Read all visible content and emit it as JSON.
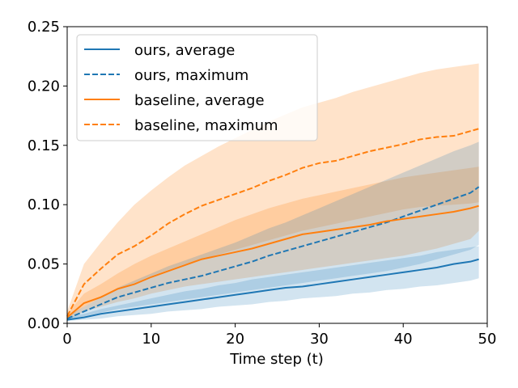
{
  "chart_data": {
    "type": "line",
    "title": "",
    "xlabel": "Time step (t)",
    "ylabel": "",
    "xlim": [
      0,
      50
    ],
    "ylim": [
      0,
      0.25
    ],
    "xticks": [
      "0",
      "10",
      "20",
      "30",
      "40",
      "50"
    ],
    "yticks": [
      "0.00",
      "0.05",
      "0.10",
      "0.15",
      "0.20",
      "0.25"
    ],
    "grid": false,
    "legend_position": "top-left",
    "x": [
      0,
      2,
      4,
      6,
      8,
      10,
      12,
      14,
      16,
      18,
      20,
      22,
      24,
      26,
      28,
      30,
      32,
      34,
      36,
      38,
      40,
      42,
      44,
      46,
      48,
      49
    ],
    "series": [
      {
        "name": "ours, average",
        "style": "solid",
        "color": "#1f77b4",
        "values": [
          0.003,
          0.005,
          0.008,
          0.01,
          0.012,
          0.014,
          0.016,
          0.018,
          0.02,
          0.022,
          0.024,
          0.026,
          0.028,
          0.03,
          0.031,
          0.033,
          0.035,
          0.037,
          0.039,
          0.041,
          0.043,
          0.045,
          0.047,
          0.05,
          0.052,
          0.054
        ],
        "band_lower": [
          0.002,
          0.003,
          0.004,
          0.006,
          0.007,
          0.008,
          0.01,
          0.011,
          0.012,
          0.014,
          0.015,
          0.016,
          0.018,
          0.019,
          0.021,
          0.022,
          0.023,
          0.025,
          0.026,
          0.028,
          0.029,
          0.031,
          0.032,
          0.034,
          0.036,
          0.038
        ],
        "band_upper": [
          0.005,
          0.008,
          0.012,
          0.015,
          0.018,
          0.021,
          0.024,
          0.027,
          0.029,
          0.032,
          0.034,
          0.037,
          0.039,
          0.041,
          0.043,
          0.045,
          0.047,
          0.049,
          0.051,
          0.053,
          0.055,
          0.057,
          0.06,
          0.062,
          0.064,
          0.065
        ]
      },
      {
        "name": "ours, maximum",
        "style": "dashed",
        "color": "#1f77b4",
        "values": [
          0.004,
          0.01,
          0.016,
          0.022,
          0.026,
          0.03,
          0.034,
          0.037,
          0.04,
          0.044,
          0.048,
          0.052,
          0.057,
          0.061,
          0.065,
          0.069,
          0.073,
          0.077,
          0.081,
          0.085,
          0.09,
          0.095,
          0.1,
          0.105,
          0.11,
          0.115
        ],
        "band_lower": [
          0.003,
          0.006,
          0.009,
          0.012,
          0.014,
          0.016,
          0.018,
          0.02,
          0.022,
          0.024,
          0.026,
          0.028,
          0.03,
          0.032,
          0.034,
          0.036,
          0.038,
          0.04,
          0.042,
          0.044,
          0.047,
          0.05,
          0.054,
          0.058,
          0.062,
          0.066
        ],
        "band_upper": [
          0.006,
          0.014,
          0.022,
          0.03,
          0.036,
          0.042,
          0.048,
          0.053,
          0.058,
          0.063,
          0.068,
          0.074,
          0.08,
          0.085,
          0.091,
          0.097,
          0.103,
          0.109,
          0.115,
          0.121,
          0.127,
          0.133,
          0.139,
          0.145,
          0.15,
          0.153
        ]
      },
      {
        "name": "baseline, average",
        "style": "solid",
        "color": "#ff7f0e",
        "values": [
          0.005,
          0.017,
          0.022,
          0.029,
          0.033,
          0.039,
          0.044,
          0.049,
          0.054,
          0.057,
          0.06,
          0.063,
          0.067,
          0.071,
          0.075,
          0.077,
          0.079,
          0.081,
          0.083,
          0.086,
          0.088,
          0.09,
          0.092,
          0.094,
          0.097,
          0.099
        ],
        "band_lower": [
          0.003,
          0.01,
          0.014,
          0.018,
          0.021,
          0.025,
          0.028,
          0.031,
          0.033,
          0.035,
          0.037,
          0.039,
          0.041,
          0.043,
          0.045,
          0.047,
          0.049,
          0.051,
          0.053,
          0.055,
          0.057,
          0.06,
          0.063,
          0.067,
          0.071,
          0.078
        ],
        "band_upper": [
          0.008,
          0.025,
          0.033,
          0.042,
          0.05,
          0.057,
          0.063,
          0.069,
          0.075,
          0.081,
          0.087,
          0.092,
          0.097,
          0.101,
          0.105,
          0.108,
          0.111,
          0.114,
          0.117,
          0.12,
          0.123,
          0.125,
          0.127,
          0.129,
          0.131,
          0.132
        ]
      },
      {
        "name": "baseline, maximum",
        "style": "dashed",
        "color": "#ff7f0e",
        "values": [
          0.006,
          0.033,
          0.046,
          0.058,
          0.065,
          0.074,
          0.084,
          0.092,
          0.099,
          0.104,
          0.109,
          0.114,
          0.12,
          0.125,
          0.131,
          0.135,
          0.137,
          0.141,
          0.145,
          0.148,
          0.151,
          0.155,
          0.157,
          0.158,
          0.162,
          0.164
        ],
        "band_lower": [
          0.004,
          0.014,
          0.022,
          0.029,
          0.034,
          0.04,
          0.045,
          0.05,
          0.054,
          0.058,
          0.062,
          0.066,
          0.07,
          0.074,
          0.078,
          0.081,
          0.084,
          0.087,
          0.09,
          0.093,
          0.096,
          0.098,
          0.099,
          0.1,
          0.101,
          0.102
        ],
        "band_upper": [
          0.01,
          0.05,
          0.068,
          0.085,
          0.1,
          0.112,
          0.123,
          0.133,
          0.141,
          0.149,
          0.156,
          0.163,
          0.17,
          0.176,
          0.182,
          0.186,
          0.19,
          0.195,
          0.199,
          0.203,
          0.207,
          0.211,
          0.214,
          0.216,
          0.218,
          0.219
        ]
      }
    ]
  }
}
